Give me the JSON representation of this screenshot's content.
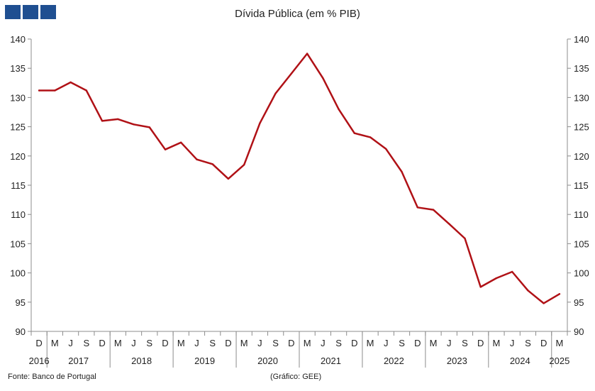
{
  "header": {
    "logo": "GEE-logo-squares"
  },
  "chart_data": {
    "type": "line",
    "title": "Dívida Pública (em % PIB)",
    "xlabel": "",
    "ylabel": "",
    "ylim": [
      90,
      140
    ],
    "y_ticks": [
      90,
      95,
      100,
      105,
      110,
      115,
      120,
      125,
      130,
      135,
      140
    ],
    "grid": false,
    "x_quarter_labels": [
      "D",
      "M",
      "J",
      "S",
      "D",
      "M",
      "J",
      "S",
      "D",
      "M",
      "J",
      "S",
      "D",
      "M",
      "J",
      "S",
      "D",
      "M",
      "J",
      "S",
      "D",
      "M",
      "J",
      "S",
      "D",
      "M",
      "J",
      "S",
      "D",
      "M",
      "J",
      "S",
      "D",
      "M"
    ],
    "x_year_labels": [
      {
        "label": "2016",
        "start": 0,
        "end": 0
      },
      {
        "label": "2017",
        "start": 1,
        "end": 4
      },
      {
        "label": "2018",
        "start": 5,
        "end": 8
      },
      {
        "label": "2019",
        "start": 9,
        "end": 12
      },
      {
        "label": "2020",
        "start": 13,
        "end": 16
      },
      {
        "label": "2021",
        "start": 17,
        "end": 20
      },
      {
        "label": "2022",
        "start": 21,
        "end": 24
      },
      {
        "label": "2023",
        "start": 25,
        "end": 28
      },
      {
        "label": "2024",
        "start": 29,
        "end": 32
      },
      {
        "label": "2025",
        "start": 33,
        "end": 33
      }
    ],
    "series": [
      {
        "color": "#b01116",
        "values": [
          131.2,
          131.2,
          132.6,
          131.2,
          126.0,
          126.3,
          125.4,
          124.9,
          121.1,
          122.3,
          119.4,
          118.6,
          116.1,
          118.5,
          125.6,
          130.7,
          134.1,
          137.5,
          133.3,
          128.0,
          123.9,
          123.2,
          121.2,
          117.3,
          111.2,
          110.8,
          108.4,
          105.9,
          97.6,
          99.1,
          100.2,
          97.0,
          94.8,
          96.4
        ]
      }
    ]
  },
  "footer": {
    "source": "Fonte: Banco de Portugal",
    "credit": "(Gráfico: GEE)"
  }
}
